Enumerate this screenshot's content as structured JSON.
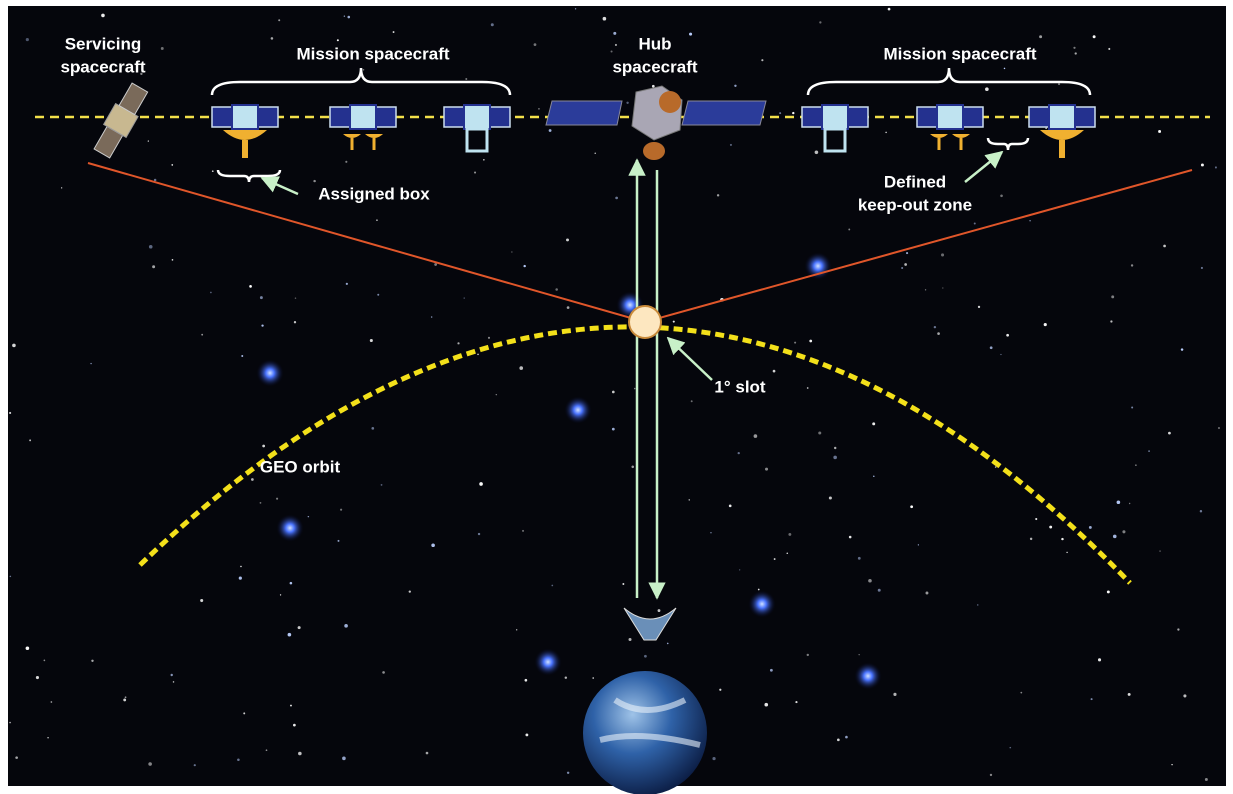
{
  "labels": [
    {
      "lines": [
        "Servicing",
        "spacecraft"
      ]
    },
    {
      "lines": [
        "Mission spacecraft"
      ]
    },
    {
      "lines": [
        "Hub",
        "spacecraft"
      ]
    },
    {
      "lines": [
        "Mission spacecraft"
      ]
    },
    {
      "lines": [
        "Assigned box"
      ]
    },
    {
      "lines": [
        "Defined",
        "keep-out zone"
      ]
    },
    {
      "lines": [
        "1° slot"
      ]
    },
    {
      "lines": [
        "GEO orbit"
      ]
    }
  ]
}
